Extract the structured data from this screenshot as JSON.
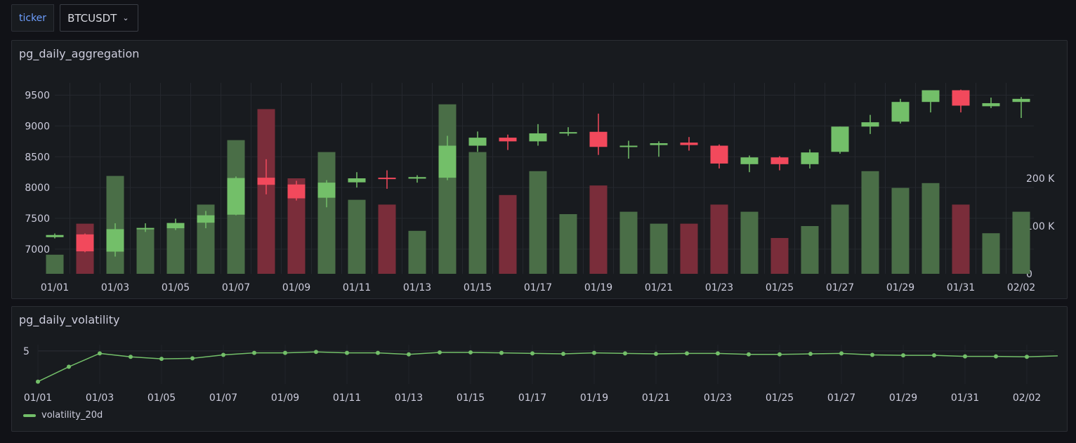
{
  "variable": {
    "label": "ticker",
    "value": "BTCUSDT"
  },
  "panels": {
    "candles_title": "pg_daily_aggregation",
    "volatility_title": "pg_daily_volatility"
  },
  "colors": {
    "up": "#73bf69",
    "down": "#f2495c",
    "up_volume": "#4a6e47",
    "down_volume": "#7a2d3a",
    "line": "#73bf69"
  },
  "chart_data": [
    {
      "type": "candlestick",
      "title": "pg_daily_aggregation",
      "x_ticks": [
        "01/01",
        "01/03",
        "01/05",
        "01/07",
        "01/09",
        "01/11",
        "01/13",
        "01/15",
        "01/17",
        "01/19",
        "01/21",
        "01/23",
        "01/25",
        "01/27",
        "01/29",
        "01/31",
        "02/02"
      ],
      "y_ticks": [
        "7000",
        "7500",
        "8000",
        "8500",
        "9000",
        "9500"
      ],
      "y_range": [
        6600,
        9700
      ],
      "volume_ticks": [
        "0",
        "100 K",
        "200 K"
      ],
      "volume_range": [
        0,
        400000
      ],
      "candles": [
        {
          "date": "01/01",
          "open": 7195,
          "high": 7255,
          "low": 7175,
          "close": 7230
        },
        {
          "date": "01/02",
          "open": 7240,
          "high": 7255,
          "low": 6950,
          "close": 6965
        },
        {
          "date": "01/03",
          "open": 6960,
          "high": 7420,
          "low": 6880,
          "close": 7325
        },
        {
          "date": "01/04",
          "open": 7330,
          "high": 7420,
          "low": 7280,
          "close": 7345
        },
        {
          "date": "01/05",
          "open": 7340,
          "high": 7495,
          "low": 7310,
          "close": 7425
        },
        {
          "date": "01/06",
          "open": 7430,
          "high": 7620,
          "low": 7340,
          "close": 7550
        },
        {
          "date": "01/07",
          "open": 7560,
          "high": 8180,
          "low": 7550,
          "close": 8155
        },
        {
          "date": "01/08",
          "open": 8160,
          "high": 8460,
          "low": 7890,
          "close": 8045
        },
        {
          "date": "01/09",
          "open": 8050,
          "high": 8110,
          "low": 7790,
          "close": 7825
        },
        {
          "date": "01/10",
          "open": 7835,
          "high": 8120,
          "low": 7680,
          "close": 8080
        },
        {
          "date": "01/11",
          "open": 8085,
          "high": 8250,
          "low": 8000,
          "close": 8150
        },
        {
          "date": "01/12",
          "open": 8160,
          "high": 8280,
          "low": 7980,
          "close": 8150
        },
        {
          "date": "01/13",
          "open": 8145,
          "high": 8200,
          "low": 8080,
          "close": 8170
        },
        {
          "date": "01/14",
          "open": 8160,
          "high": 8840,
          "low": 8120,
          "close": 8680
        },
        {
          "date": "01/15",
          "open": 8680,
          "high": 8910,
          "low": 8580,
          "close": 8810
        },
        {
          "date": "01/16",
          "open": 8810,
          "high": 8860,
          "low": 8610,
          "close": 8750
        },
        {
          "date": "01/17",
          "open": 8750,
          "high": 9030,
          "low": 8680,
          "close": 8880
        },
        {
          "date": "01/18",
          "open": 8880,
          "high": 8980,
          "low": 8840,
          "close": 8900
        },
        {
          "date": "01/19",
          "open": 8905,
          "high": 9200,
          "low": 8530,
          "close": 8660
        },
        {
          "date": "01/20",
          "open": 8660,
          "high": 8760,
          "low": 8470,
          "close": 8680
        },
        {
          "date": "01/21",
          "open": 8690,
          "high": 8750,
          "low": 8500,
          "close": 8720
        },
        {
          "date": "01/22",
          "open": 8730,
          "high": 8820,
          "low": 8600,
          "close": 8690
        },
        {
          "date": "01/23",
          "open": 8680,
          "high": 8700,
          "low": 8310,
          "close": 8390
        },
        {
          "date": "01/24",
          "open": 8380,
          "high": 8520,
          "low": 8250,
          "close": 8490
        },
        {
          "date": "01/25",
          "open": 8490,
          "high": 8510,
          "low": 8280,
          "close": 8380
        },
        {
          "date": "01/26",
          "open": 8380,
          "high": 8620,
          "low": 8310,
          "close": 8570
        },
        {
          "date": "01/27",
          "open": 8580,
          "high": 8990,
          "low": 8550,
          "close": 8990
        },
        {
          "date": "01/28",
          "open": 8990,
          "high": 9180,
          "low": 8870,
          "close": 9060
        },
        {
          "date": "01/29",
          "open": 9070,
          "high": 9440,
          "low": 9040,
          "close": 9390
        },
        {
          "date": "01/30",
          "open": 9390,
          "high": 9580,
          "low": 9220,
          "close": 9580
        },
        {
          "date": "01/31",
          "open": 9580,
          "high": 9590,
          "low": 9220,
          "close": 9330
        },
        {
          "date": "02/01",
          "open": 9320,
          "high": 9460,
          "low": 9290,
          "close": 9370
        },
        {
          "date": "02/02",
          "open": 9390,
          "high": 9470,
          "low": 9130,
          "close": 9440
        }
      ],
      "volumes": [
        40000,
        105000,
        205000,
        95000,
        100000,
        145000,
        280000,
        345000,
        200000,
        255000,
        155000,
        145000,
        90000,
        355000,
        255000,
        165000,
        215000,
        125000,
        185000,
        130000,
        105000,
        105000,
        145000,
        130000,
        75000,
        100000,
        145000,
        215000,
        180000,
        190000,
        145000,
        85000,
        130000
      ]
    },
    {
      "type": "line",
      "title": "pg_daily_volatility",
      "x_ticks": [
        "01/01",
        "01/03",
        "01/05",
        "01/07",
        "01/09",
        "01/11",
        "01/13",
        "01/15",
        "01/17",
        "01/19",
        "01/21",
        "01/23",
        "01/25",
        "01/27",
        "01/29",
        "01/31",
        "02/02"
      ],
      "y_ticks": [
        "5"
      ],
      "y_range": [
        1.8,
        5.2
      ],
      "series": [
        {
          "name": "volatility_20d",
          "values": [
            1.9,
            3.4,
            4.75,
            4.4,
            4.2,
            4.25,
            4.6,
            4.8,
            4.8,
            4.9,
            4.8,
            4.8,
            4.65,
            4.85,
            4.85,
            4.8,
            4.75,
            4.7,
            4.8,
            4.75,
            4.7,
            4.75,
            4.75,
            4.65,
            4.65,
            4.7,
            4.75,
            4.6,
            4.55,
            4.55,
            4.45,
            4.45,
            4.4,
            4.5
          ]
        }
      ]
    }
  ]
}
